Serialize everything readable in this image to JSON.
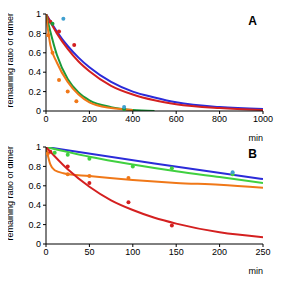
{
  "chart_data": [
    {
      "type": "line",
      "title": "A",
      "xlabel": "min",
      "ylabel": "remaining ratio of dimer",
      "xlim": [
        0,
        1000
      ],
      "xticks": [
        0,
        200,
        400,
        600,
        800,
        1000
      ],
      "ylim": [
        0,
        1
      ],
      "yticks": [
        0,
        0.2,
        0.4,
        0.6,
        0.8,
        1
      ],
      "grid": false,
      "series": [
        {
          "type": "line",
          "line_style": "solid",
          "color": "#2b2bd9",
          "x": [
            0,
            50,
            100,
            150,
            200,
            300,
            400,
            500,
            600,
            800,
            1000
          ],
          "values": [
            1,
            0.82,
            0.67,
            0.55,
            0.45,
            0.3,
            0.2,
            0.14,
            0.09,
            0.04,
            0.02
          ]
        },
        {
          "type": "line",
          "line_style": "solid",
          "color": "#d42020",
          "x": [
            0,
            50,
            100,
            150,
            200,
            300,
            400,
            500,
            600,
            800,
            1000
          ],
          "values": [
            1,
            0.8,
            0.64,
            0.51,
            0.41,
            0.26,
            0.17,
            0.11,
            0.07,
            0.03,
            0.01
          ]
        },
        {
          "type": "line",
          "line_style": "solid",
          "color": "#1a9a3a",
          "x": [
            0,
            50,
            100,
            150,
            200,
            300,
            400,
            500
          ],
          "values": [
            1,
            0.58,
            0.33,
            0.19,
            0.11,
            0.04,
            0.01,
            0
          ]
        },
        {
          "type": "line",
          "line_style": "solid",
          "color": "#f07818",
          "x": [
            0,
            20,
            50,
            100,
            150,
            200,
            300,
            400
          ],
          "values": [
            1,
            0.68,
            0.5,
            0.3,
            0.17,
            0.09,
            0.03,
            0.01
          ]
        },
        {
          "type": "scatter",
          "marker": "circle",
          "color": "#d42020",
          "x": [
            20,
            60,
            130
          ],
          "values": [
            0.92,
            0.82,
            0.68
          ]
        },
        {
          "type": "scatter",
          "marker": "circle",
          "color": "#f07818",
          "x": [
            10,
            30,
            60,
            100,
            140
          ],
          "values": [
            0.78,
            0.6,
            0.32,
            0.2,
            0.1
          ]
        },
        {
          "type": "scatter",
          "marker": "circle",
          "color": "#1a9a3a",
          "x": [
            30,
            360
          ],
          "values": [
            0.9,
            0.02
          ]
        },
        {
          "type": "scatter",
          "marker": "circle",
          "color": "#40a0d0",
          "x": [
            80,
            360
          ],
          "values": [
            0.95,
            0.04
          ]
        }
      ]
    },
    {
      "type": "line",
      "title": "B",
      "xlabel": "min",
      "ylabel": "remaining ratio of dimer",
      "xlim": [
        0,
        250
      ],
      "xticks": [
        0,
        50,
        100,
        150,
        200,
        250
      ],
      "ylim": [
        0,
        1
      ],
      "yticks": [
        0,
        0.2,
        0.4,
        0.6,
        0.8,
        1
      ],
      "grid": false,
      "series": [
        {
          "type": "line",
          "line_style": "solid",
          "color": "#2b2bd9",
          "x": [
            0,
            125,
            250
          ],
          "values": [
            1,
            0.83,
            0.67
          ]
        },
        {
          "type": "line",
          "line_style": "solid",
          "color": "#40d040",
          "x": [
            0,
            50,
            100,
            150,
            200,
            250
          ],
          "values": [
            1,
            0.9,
            0.82,
            0.75,
            0.69,
            0.63
          ]
        },
        {
          "type": "line",
          "line_style": "solid",
          "color": "#f07818",
          "x": [
            0,
            5,
            10,
            20,
            50,
            100,
            150,
            200,
            250
          ],
          "values": [
            1,
            0.82,
            0.76,
            0.73,
            0.7,
            0.66,
            0.63,
            0.61,
            0.58
          ]
        },
        {
          "type": "line",
          "line_style": "solid",
          "color": "#d42020",
          "x": [
            0,
            25,
            50,
            75,
            100,
            125,
            150,
            200,
            250
          ],
          "values": [
            1,
            0.77,
            0.59,
            0.45,
            0.35,
            0.27,
            0.21,
            0.12,
            0.07
          ]
        },
        {
          "type": "scatter",
          "marker": "circle",
          "color": "#40d040",
          "x": [
            10,
            25,
            50,
            100,
            145,
            215
          ],
          "values": [
            0.94,
            0.92,
            0.88,
            0.8,
            0.78,
            0.72
          ]
        },
        {
          "type": "scatter",
          "marker": "circle",
          "color": "#40a0d0",
          "x": [
            215
          ],
          "values": [
            0.74
          ]
        },
        {
          "type": "scatter",
          "marker": "circle",
          "color": "#f07818",
          "x": [
            2,
            25,
            50,
            95
          ],
          "values": [
            0.93,
            0.72,
            0.7,
            0.68
          ]
        },
        {
          "type": "scatter",
          "marker": "circle",
          "color": "#d42020",
          "x": [
            5,
            25,
            50,
            95,
            145
          ],
          "values": [
            0.95,
            0.8,
            0.63,
            0.43,
            0.19
          ]
        }
      ]
    }
  ]
}
